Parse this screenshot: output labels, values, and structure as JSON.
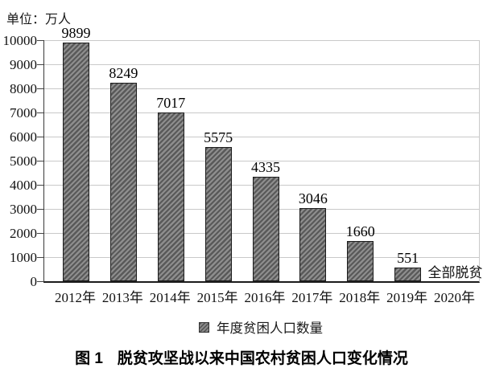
{
  "colors": {
    "bar_dark": "#595959",
    "bar_light": "#8e8e8e",
    "bar_border": "#1c1c1c",
    "gridline": "#c9c9c9",
    "axis": "#1c1c1c"
  },
  "caption": {
    "prefix": "图 1",
    "text": "脱贫攻坚战以来中国农村贫困人口变化情况"
  },
  "chart_data": {
    "type": "bar",
    "unit_label": "单位：万人",
    "categories": [
      "2012年",
      "2013年",
      "2014年",
      "2015年",
      "2016年",
      "2017年",
      "2018年",
      "2019年",
      "2020年"
    ],
    "values": [
      9899,
      8249,
      7017,
      5575,
      4335,
      3046,
      1660,
      551,
      null
    ],
    "bar_labels": [
      "9899",
      "8249",
      "7017",
      "5575",
      "4335",
      "3046",
      "1660",
      "551"
    ],
    "annotation": {
      "category": "2020年",
      "text": "全部脱贫"
    },
    "legend_label": "年度贫困人口数量",
    "legend_position": "bottom",
    "title": "图 1 脱贫攻坚战以来中国农村贫困人口变化情况",
    "xlabel": "",
    "ylabel": "",
    "ylim": [
      0,
      10000
    ],
    "ytick_interval": 1000,
    "yticks": [
      0,
      1000,
      2000,
      3000,
      4000,
      5000,
      6000,
      7000,
      8000,
      9000,
      10000
    ],
    "grid": true,
    "bar_style": "diagonal-hatch"
  }
}
